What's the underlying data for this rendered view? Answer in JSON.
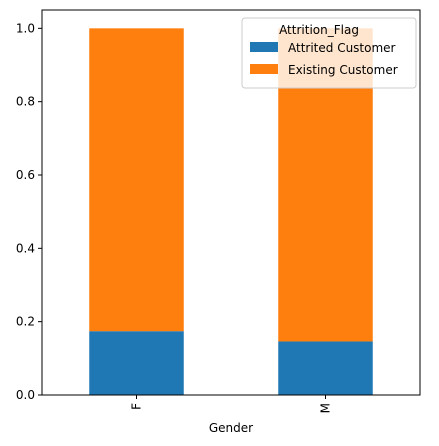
{
  "chart_data": {
    "type": "bar",
    "stacked": true,
    "categories": [
      "F",
      "M"
    ],
    "series": [
      {
        "name": "Attrited Customer",
        "values": [
          0.174,
          0.146
        ],
        "color": "#1f77b4"
      },
      {
        "name": "Existing Customer",
        "values": [
          0.826,
          0.854
        ],
        "color": "#ff7f0e"
      }
    ],
    "title": "",
    "xlabel": "Gender",
    "ylabel": "",
    "ylim": [
      0,
      1.05
    ],
    "yticks": [
      0.0,
      0.2,
      0.4,
      0.6,
      0.8,
      1.0
    ],
    "ytick_labels": [
      "0.0",
      "0.2",
      "0.4",
      "0.6",
      "0.8",
      "1.0"
    ],
    "xtick_rotation": "vertical",
    "grid": false,
    "legend": {
      "title": "Attrition_Flag",
      "placement": "top-right"
    }
  }
}
